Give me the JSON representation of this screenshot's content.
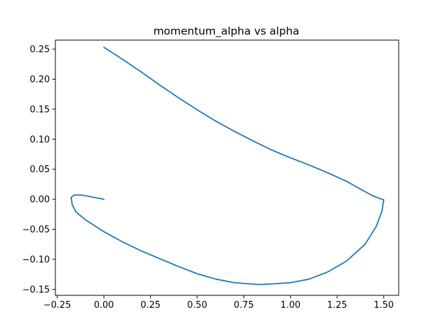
{
  "chart_data": {
    "type": "line",
    "title": "momentum_alpha vs alpha",
    "xlabel": "",
    "ylabel": "",
    "xlim": [
      -0.26,
      1.58
    ],
    "ylim": [
      -0.16,
      0.265
    ],
    "x_ticks": [
      -0.25,
      0.0,
      0.25,
      0.5,
      0.75,
      1.0,
      1.25,
      1.5
    ],
    "x_tick_labels": [
      "−0.25",
      "0.00",
      "0.25",
      "0.50",
      "0.75",
      "1.00",
      "1.25",
      "1.50"
    ],
    "y_ticks": [
      -0.15,
      -0.1,
      -0.05,
      0.0,
      0.05,
      0.1,
      0.15,
      0.2,
      0.25
    ],
    "y_tick_labels": [
      "−0.15",
      "−0.10",
      "−0.05",
      "0.00",
      "0.05",
      "0.10",
      "0.15",
      "0.20",
      "0.25"
    ],
    "grid": false,
    "series": [
      {
        "color": "#1f77b4",
        "x": [
          0.0,
          0.1,
          0.2,
          0.3,
          0.4,
          0.5,
          0.6,
          0.7,
          0.8,
          0.9,
          1.0,
          1.1,
          1.2,
          1.3,
          1.38,
          1.44,
          1.48,
          1.5,
          1.49,
          1.46,
          1.4,
          1.3,
          1.2,
          1.1,
          1.0,
          0.9,
          0.83,
          0.7,
          0.6,
          0.5,
          0.4,
          0.3,
          0.2,
          0.1,
          0.0,
          -0.1,
          -0.15,
          -0.17,
          -0.175,
          -0.16,
          -0.12,
          -0.05,
          0.0
        ],
        "y": [
          0.253,
          0.233,
          0.212,
          0.19,
          0.169,
          0.149,
          0.13,
          0.113,
          0.097,
          0.082,
          0.069,
          0.057,
          0.044,
          0.03,
          0.016,
          0.006,
          0.001,
          -0.001,
          -0.02,
          -0.045,
          -0.075,
          -0.103,
          -0.121,
          -0.133,
          -0.139,
          -0.141,
          -0.142,
          -0.139,
          -0.133,
          -0.124,
          -0.112,
          -0.099,
          -0.086,
          -0.071,
          -0.054,
          -0.034,
          -0.021,
          -0.009,
          0.003,
          0.007,
          0.007,
          0.003,
          0.0
        ]
      }
    ]
  }
}
